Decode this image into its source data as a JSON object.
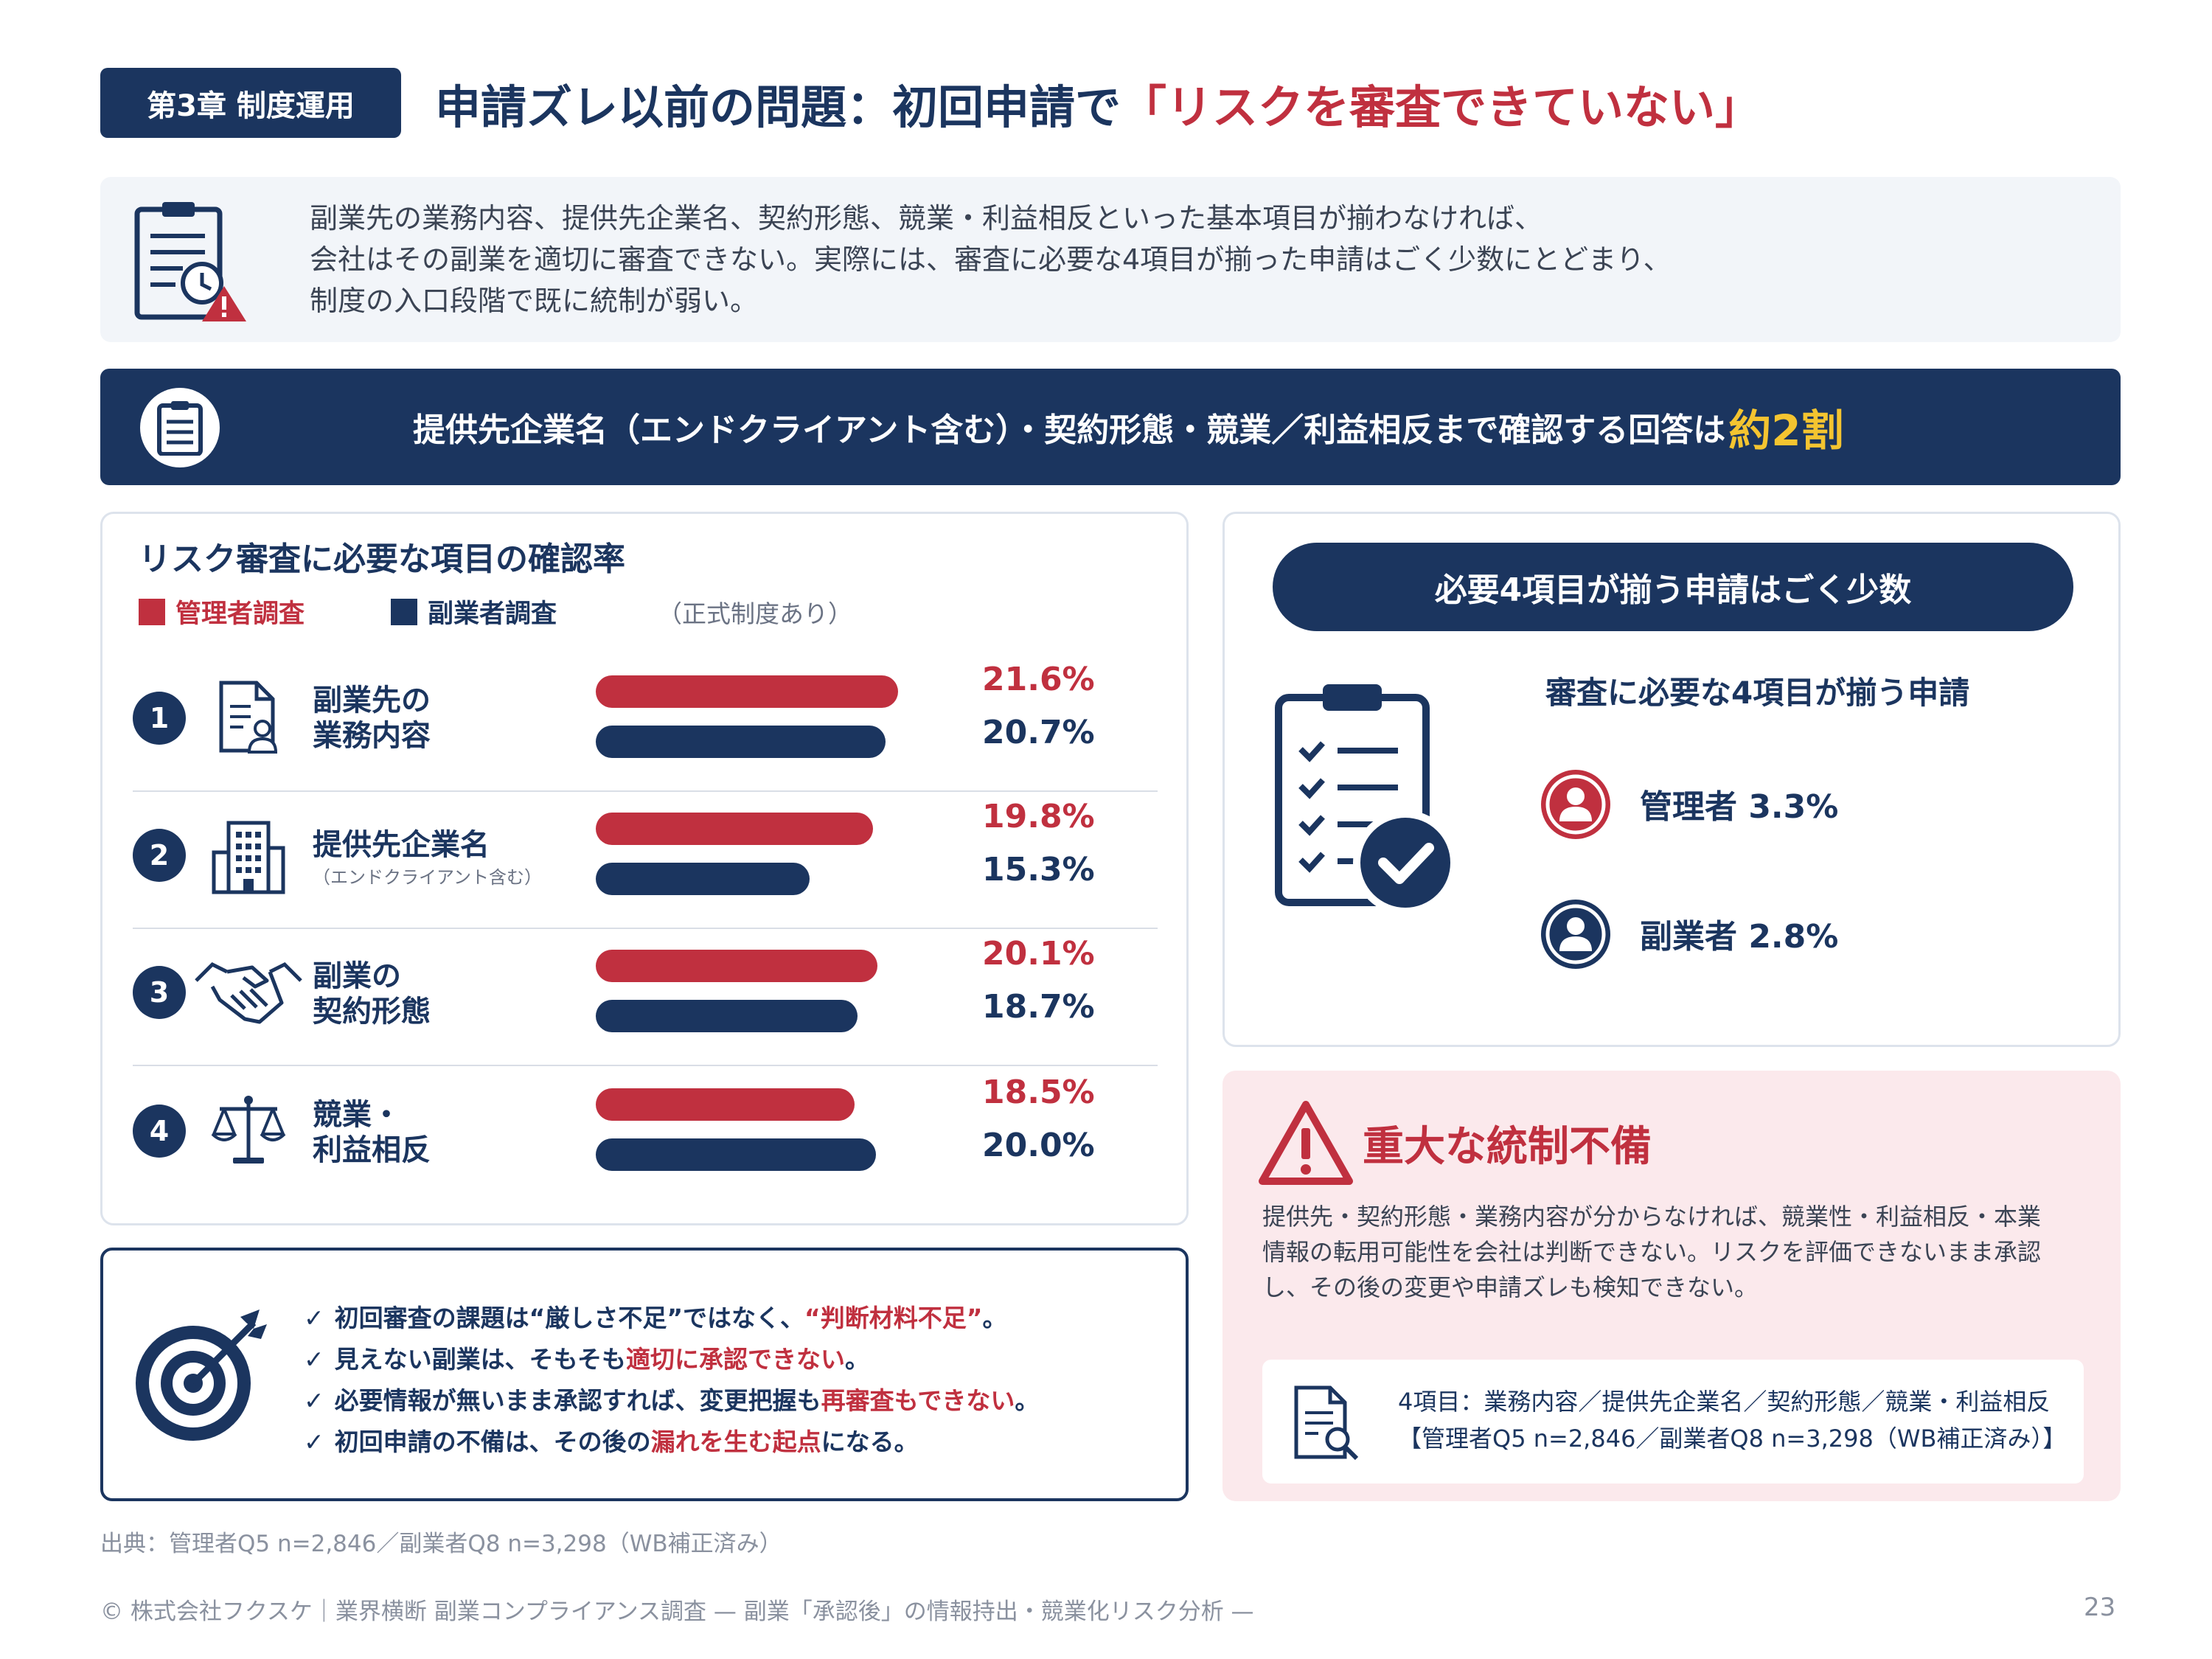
{
  "header": {
    "chapter": "第3章 制度運用",
    "title_main": "申請ズレ以前の問題：初回申請で",
    "title_highlight": "「リスクを審査できていない」"
  },
  "intro": {
    "lines": [
      "副業先の業務内容、提供先企業名、契約形態、競業・利益相反といった基本項目が揃わなければ、",
      "会社はその副業を適切に審査できない。実際には、審査に必要な4項目が揃った申請はごく少数にとどまり、",
      "制度の入口段階で既に統制が弱い。"
    ]
  },
  "banner": {
    "text": "提供先企業名（エンドクライアント含む）・契約形態・競業／利益相反まで確認する回答は",
    "highlight": "約2割"
  },
  "chart": {
    "title": "リスク審査に必要な項目の確認率",
    "legend_manager": "管理者調査",
    "legend_worker": "副業者調査",
    "legend_note": "（正式制度あり）",
    "colors": {
      "manager": "#c0303f",
      "worker": "#1b355f"
    },
    "rows": [
      {
        "num": "1",
        "label1": "副業先の",
        "label2": "業務内容",
        "sub": "",
        "icon": "document-person-icon",
        "manager_pct": "21.6%",
        "worker_pct": "20.7%"
      },
      {
        "num": "2",
        "label1": "提供先企業名",
        "label2": "",
        "sub": "（エンドクライアント含む）",
        "icon": "building-icon",
        "manager_pct": "19.8%",
        "worker_pct": "15.3%"
      },
      {
        "num": "3",
        "label1": "副業の",
        "label2": "契約形態",
        "sub": "",
        "icon": "handshake-icon",
        "manager_pct": "20.1%",
        "worker_pct": "18.7%"
      },
      {
        "num": "4",
        "label1": "競業・",
        "label2": "利益相反",
        "sub": "",
        "icon": "scales-icon",
        "manager_pct": "18.5%",
        "worker_pct": "20.0%"
      }
    ]
  },
  "chart_data": {
    "type": "bar",
    "title": "リスク審査に必要な項目の確認率",
    "categories": [
      "副業先の業務内容",
      "提供先企業名",
      "副業の契約形態",
      "競業・利益相反"
    ],
    "series": [
      {
        "name": "管理者調査",
        "values": [
          21.6,
          19.8,
          20.1,
          18.5
        ]
      },
      {
        "name": "副業者調査",
        "values": [
          20.7,
          15.3,
          18.7,
          20.0
        ]
      }
    ],
    "orientation": "horizontal"
  },
  "summary": {
    "pill": "必要4項目が揃う申請はごく少数",
    "subtitle": "審査に必要な4項目が揃う申請",
    "manager": "管理者 3.3%",
    "worker": "副業者 2.8%"
  },
  "warning": {
    "title": "重大な統制不備",
    "lines": [
      "提供先・契約形態・業務内容が分からなければ、競業性・利益相反・本業",
      "情報の転用可能性を会社は判断できない。リスクを評価できないまま承認",
      "し、その後の変更や申請ズレも検知できない。"
    ],
    "note1": "4項目：業務内容／提供先企業名／契約形態／競業・利益相反",
    "note2": "【管理者Q5 n=2,846／副業者Q8 n=3,298（WB補正済み）】"
  },
  "insights": [
    {
      "pre": "初回審査の課題は“厳しさ不足”ではなく、",
      "hl": "“判断材料不足”",
      "post": "。"
    },
    {
      "pre": "見えない副業は、そもそも",
      "hl": "適切に承認できない",
      "post": "。"
    },
    {
      "pre": "必要情報が無いまま承認すれば、変更把握も",
      "hl": "再審査もできない",
      "post": "。"
    },
    {
      "pre": "初回申請の不備は、その後の",
      "hl": "漏れを生む起点",
      "post": "になる。"
    }
  ],
  "check_mark": "✓",
  "source": "出典：管理者Q5 n=2,846／副業者Q8 n=3,298（WB補正済み）",
  "footer": "© 株式会社フクスケ｜業界横断 副業コンプライアンス調査 — 副業「承認後」の情報持出・競業化リスク分析 —",
  "page_number": "23"
}
